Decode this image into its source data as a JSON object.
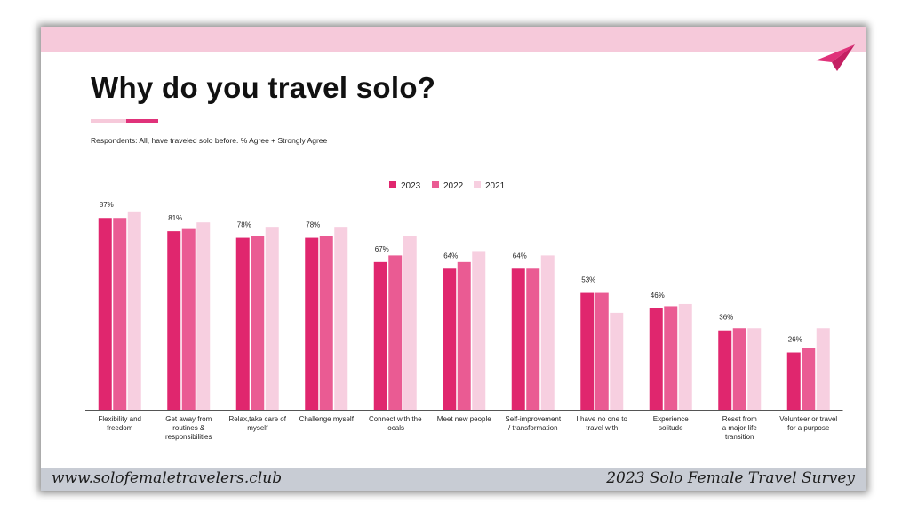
{
  "title": "Why do you travel solo?",
  "subtitle": "Respondents: All, have traveled solo before. % Agree + Strongly Agree",
  "footer": {
    "website": "www.solofemaletravelers.club",
    "survey": "2023 Solo Female Travel Survey"
  },
  "icons": {
    "logo": "paper-plane-icon"
  },
  "colors": {
    "band": "#f6c9da",
    "accent": "#e0327a",
    "s2023": "#e0266e",
    "s2022": "#ea5b93",
    "s2021": "#f7cfe0"
  },
  "chart_data": {
    "type": "bar",
    "title": "",
    "xlabel": "",
    "ylabel": "",
    "ylim": [
      0,
      100
    ],
    "legend_position": "top-center",
    "grid": false,
    "categories": [
      [
        "Flexibility and",
        "freedom"
      ],
      [
        "Get away from",
        "routines &",
        "responsibilities"
      ],
      [
        "Relax,take care of",
        "myself"
      ],
      [
        "Challenge myself"
      ],
      [
        "Connect with the",
        "locals"
      ],
      [
        "Meet new people"
      ],
      [
        "Self-improvement",
        "/ transformation"
      ],
      [
        "I have no one to",
        "travel with"
      ],
      [
        "Experience",
        "solitude"
      ],
      [
        "Reset from",
        "a major life",
        "transition"
      ],
      [
        "Volunteer or travel",
        "for a purpose"
      ]
    ],
    "series": [
      {
        "name": "2023",
        "values": [
          87,
          81,
          78,
          78,
          67,
          64,
          64,
          53,
          46,
          36,
          26
        ],
        "labels": [
          "87%",
          "81%",
          "78%",
          "78%",
          "67%",
          "64%",
          "64%",
          "53%",
          "46%",
          "36%",
          "26%"
        ]
      },
      {
        "name": "2022",
        "values": [
          87,
          82,
          79,
          79,
          70,
          67,
          64,
          53,
          47,
          37,
          28
        ],
        "labels": []
      },
      {
        "name": "2021",
        "values": [
          90,
          85,
          83,
          83,
          79,
          72,
          70,
          44,
          48,
          37,
          37
        ],
        "labels": []
      }
    ]
  }
}
